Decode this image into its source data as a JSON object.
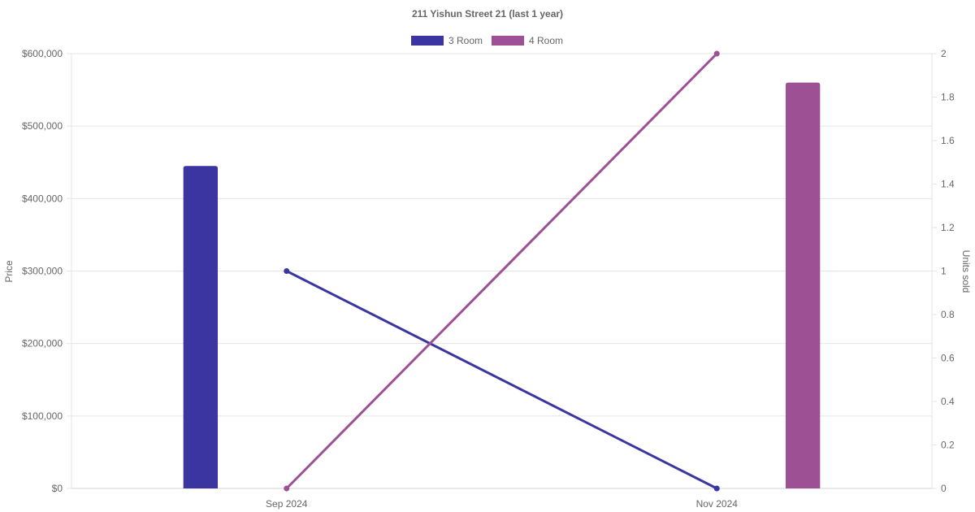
{
  "chart_data": {
    "type": "bar",
    "title": "211 Yishun Street 21 (last 1 year)",
    "categories": [
      "Sep 2024",
      "Nov 2024"
    ],
    "y_left": {
      "label": "Price",
      "min": 0,
      "max": 600000,
      "step": 100000,
      "tick_labels": [
        "$0",
        "$100,000",
        "$200,000",
        "$300,000",
        "$400,000",
        "$500,000",
        "$600,000"
      ]
    },
    "y_right": {
      "label": "Units sold",
      "min": 0,
      "max": 2,
      "step": 0.2,
      "tick_labels": [
        "0",
        "0.2",
        "0.4",
        "0.6",
        "0.8",
        "1",
        "1.2",
        "1.4",
        "1.6",
        "1.8",
        "2"
      ]
    },
    "legend_position": "top-center",
    "grid": true,
    "series": [
      {
        "name": "3 Room",
        "color": "#3a35a0",
        "bar_values": [
          445000,
          null
        ],
        "line_values": [
          1,
          0
        ]
      },
      {
        "name": "4 Room",
        "color": "#9e5095",
        "bar_values": [
          null,
          560000
        ],
        "line_values": [
          0,
          2
        ]
      }
    ]
  }
}
